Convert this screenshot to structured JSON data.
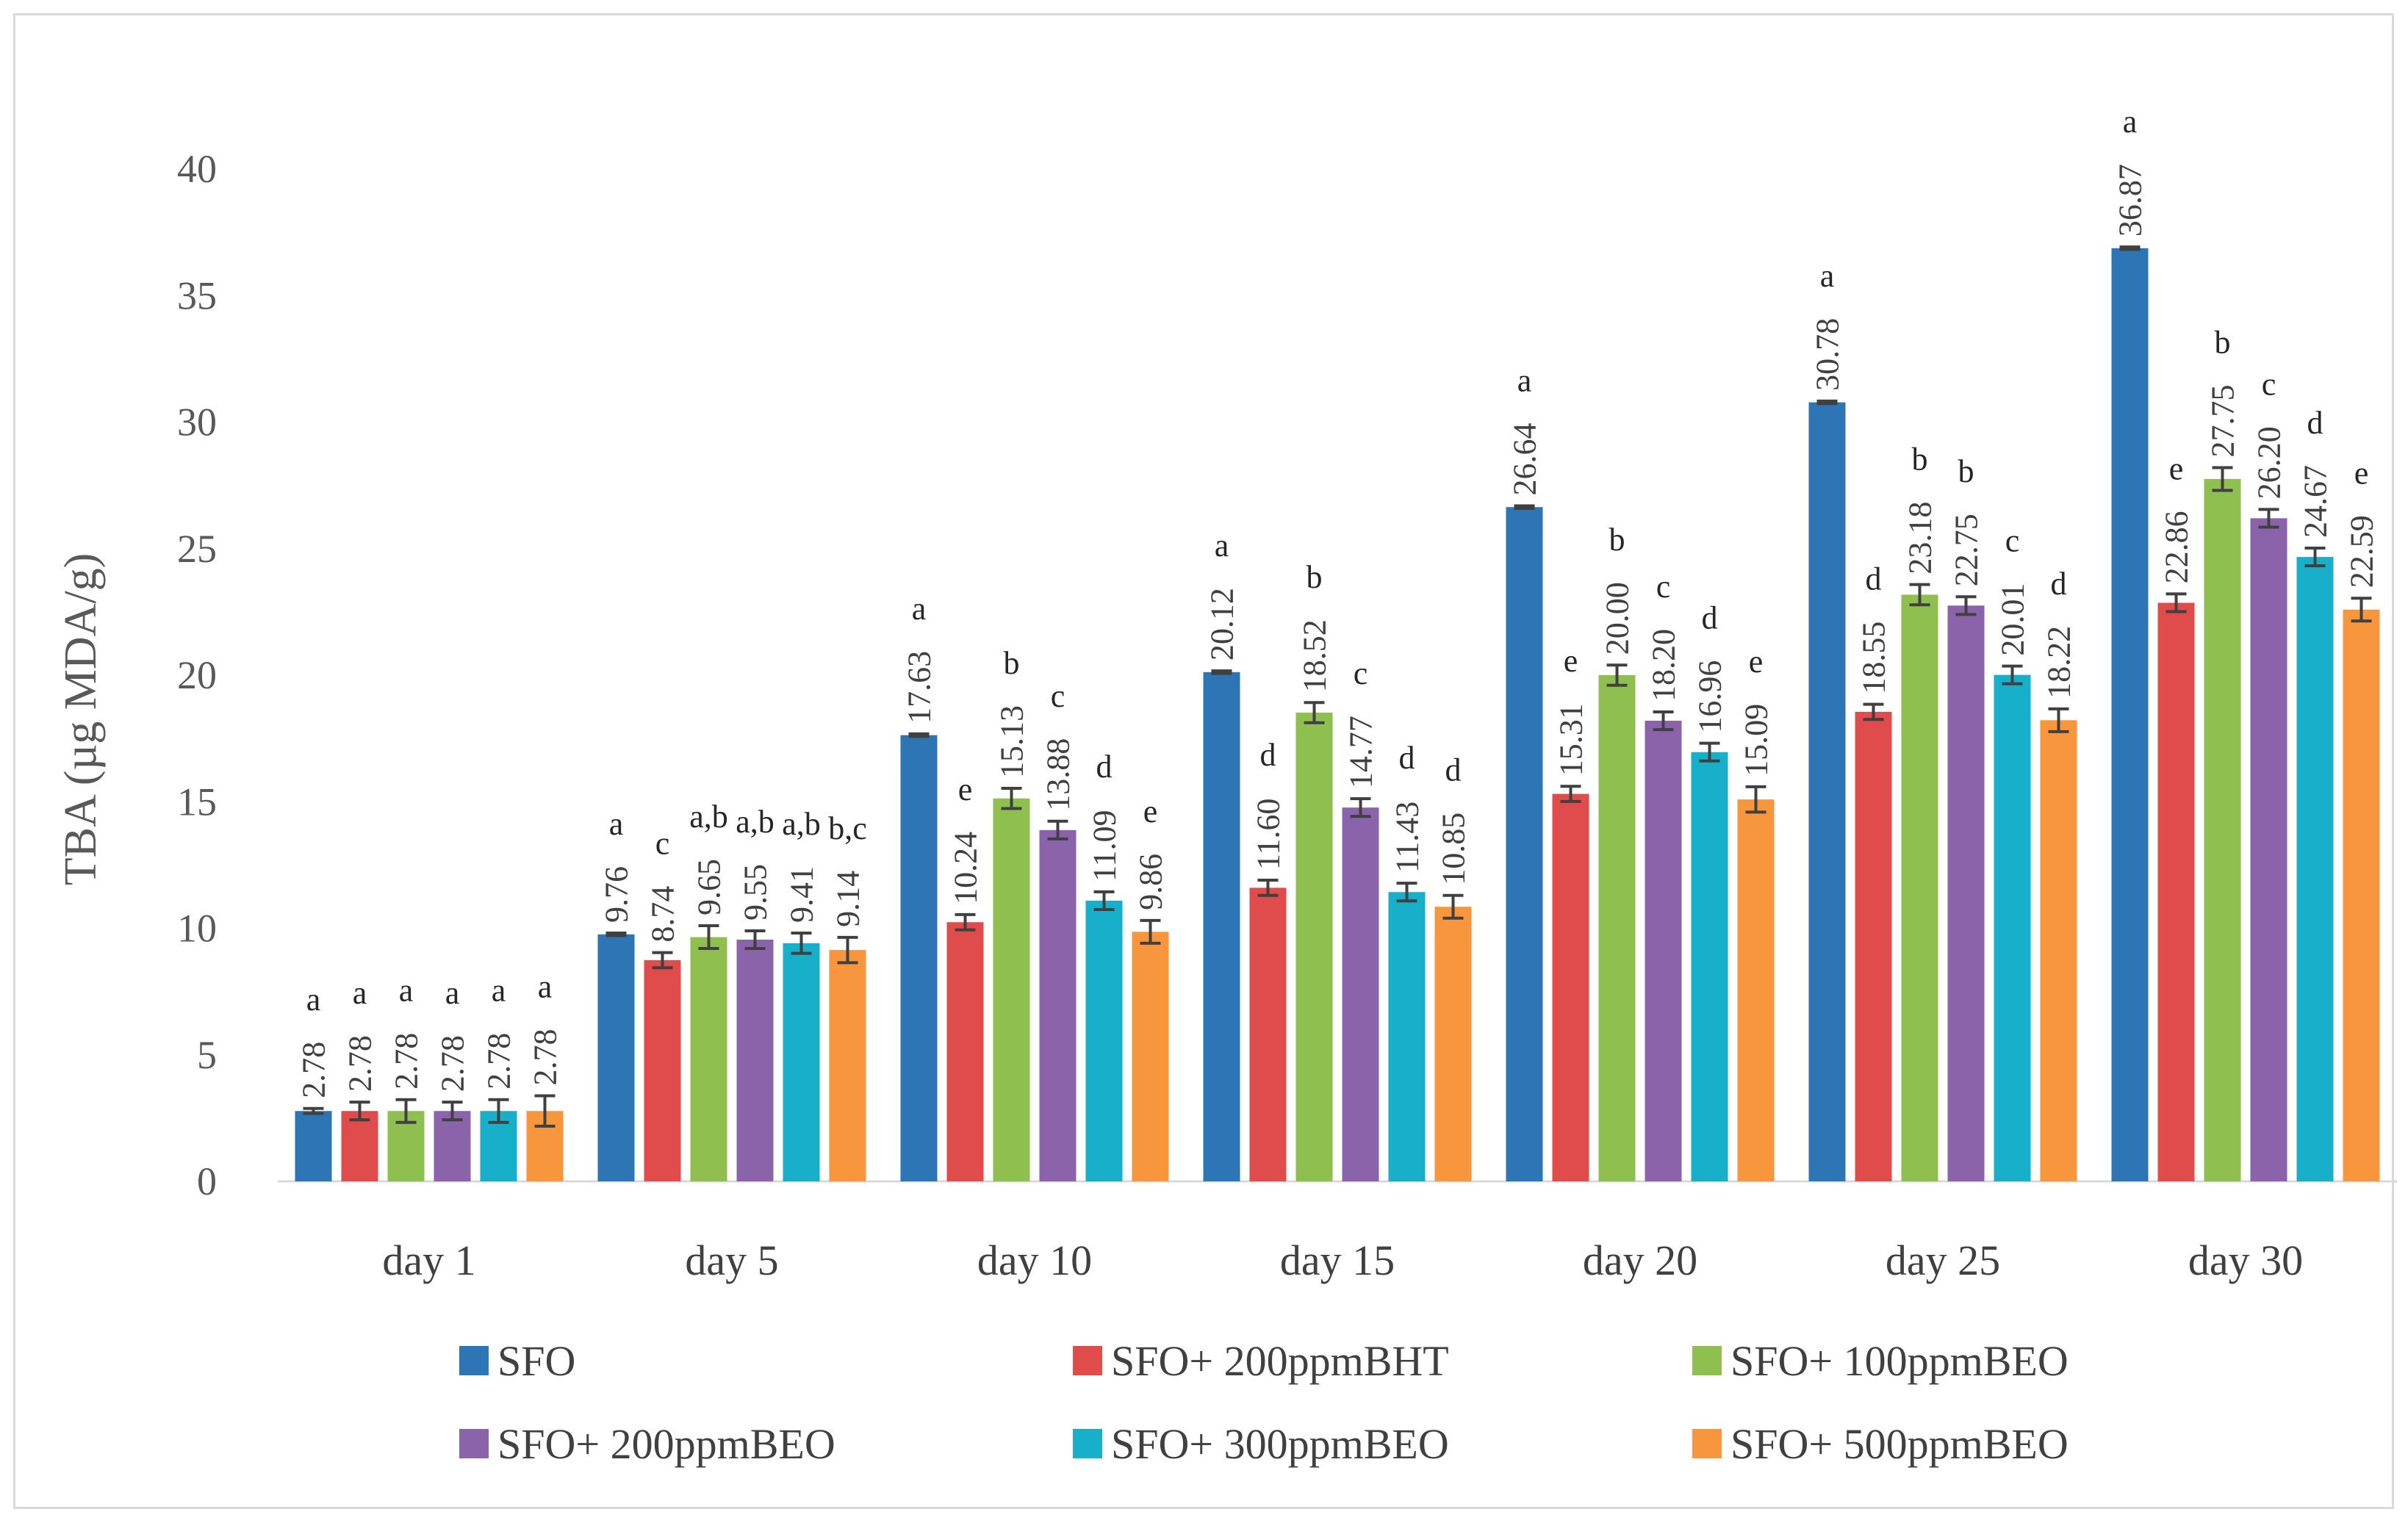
{
  "chart_data": {
    "type": "bar",
    "title": "",
    "xlabel": "",
    "ylabel": "TBA (µg MDA/g)",
    "ylim": [
      0,
      40
    ],
    "yticks": [
      "0",
      "5",
      "10",
      "15",
      "20",
      "25",
      "30",
      "35",
      "40"
    ],
    "grid": false,
    "legend_position": "bottom",
    "categories": [
      "day 1",
      "day 5",
      "day 10",
      "day 15",
      "day 20",
      "day 25",
      "day 30"
    ],
    "series": [
      {
        "name": "SFO",
        "color": "#2e75b6",
        "values": [
          2.78,
          9.76,
          17.63,
          20.12,
          26.64,
          30.78,
          36.87
        ],
        "labels": [
          "2.78",
          "9.76",
          "17.63",
          "20.12",
          "26.64",
          "30.78",
          "36.87"
        ],
        "errors": [
          0.1,
          0.05,
          0.05,
          0.05,
          0.05,
          0.05,
          0.05
        ],
        "letters": [
          "a",
          "a",
          "a",
          "a",
          "a",
          "a",
          "a"
        ]
      },
      {
        "name": "SFO+ 200ppmBHT",
        "color": "#e04b4b",
        "values": [
          2.78,
          8.74,
          10.24,
          11.6,
          15.31,
          18.55,
          22.86
        ],
        "labels": [
          "2.78",
          "8.74",
          "10.24",
          "11.60",
          "15.31",
          "18.55",
          "22.86"
        ],
        "errors": [
          0.35,
          0.3,
          0.3,
          0.3,
          0.3,
          0.3,
          0.35
        ],
        "letters": [
          "a",
          "c",
          "e",
          "d",
          "e",
          "d",
          "e"
        ]
      },
      {
        "name": "SFO+ 100ppmBEO",
        "color": "#8fc04f",
        "values": [
          2.78,
          9.65,
          15.13,
          18.52,
          20.0,
          23.18,
          27.75
        ],
        "labels": [
          "2.78",
          "9.65",
          "15.13",
          "18.52",
          "20.00",
          "23.18",
          "27.75"
        ],
        "errors": [
          0.45,
          0.45,
          0.4,
          0.4,
          0.4,
          0.4,
          0.45
        ],
        "letters": [
          "a",
          "a,b",
          "b",
          "b",
          "b",
          "b",
          "b"
        ]
      },
      {
        "name": "SFO+ 200ppmBEO",
        "color": "#8a63ab",
        "values": [
          2.78,
          9.55,
          13.88,
          14.77,
          18.2,
          22.75,
          26.2
        ],
        "labels": [
          "2.78",
          "9.55",
          "13.88",
          "14.77",
          "18.20",
          "22.75",
          "26.20"
        ],
        "errors": [
          0.35,
          0.35,
          0.35,
          0.35,
          0.35,
          0.35,
          0.35
        ],
        "letters": [
          "a",
          "a,b",
          "c",
          "c",
          "c",
          "b",
          "c"
        ]
      },
      {
        "name": "SFO+ 300ppmBEO",
        "color": "#17afc9",
        "values": [
          2.78,
          9.41,
          11.09,
          11.43,
          16.96,
          20.01,
          24.67
        ],
        "labels": [
          "2.78",
          "9.41",
          "11.09",
          "11.43",
          "16.96",
          "20.01",
          "24.67"
        ],
        "errors": [
          0.45,
          0.4,
          0.35,
          0.35,
          0.35,
          0.35,
          0.35
        ],
        "letters": [
          "a",
          "a,b",
          "d",
          "d",
          "d",
          "c",
          "d"
        ]
      },
      {
        "name": "SFO+ 500ppmBEO",
        "color": "#f7963c",
        "values": [
          2.78,
          9.14,
          9.86,
          10.85,
          15.09,
          18.22,
          22.59
        ],
        "labels": [
          "2.78",
          "9.14",
          "9.86",
          "10.85",
          "15.09",
          "18.22",
          "22.59"
        ],
        "errors": [
          0.6,
          0.5,
          0.45,
          0.45,
          0.5,
          0.45,
          0.45
        ],
        "letters": [
          "a",
          "b,c",
          "e",
          "d",
          "e",
          "d",
          "e"
        ]
      }
    ]
  }
}
